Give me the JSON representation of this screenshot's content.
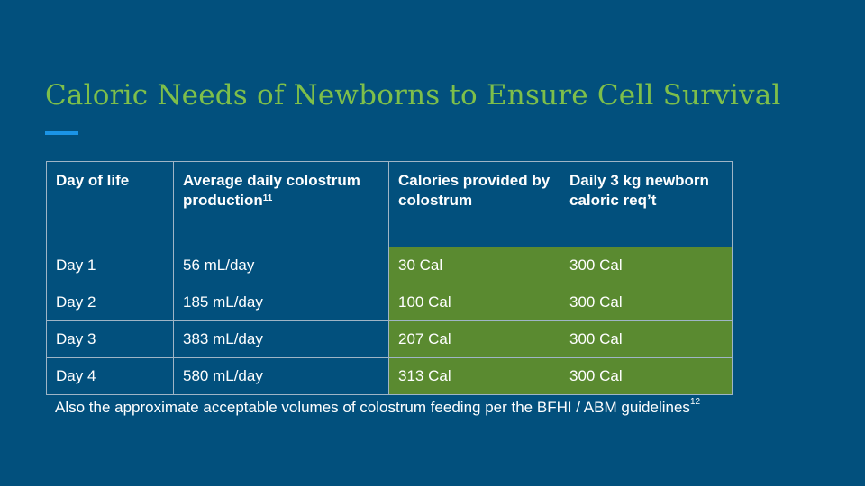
{
  "slide": {
    "title": "Caloric Needs of Newborns to Ensure Cell Survival",
    "accent_color": "#1b94e6",
    "title_color": "#7ebf4a",
    "background_color": "#02507d",
    "highlight_color": "#5a8a30"
  },
  "table": {
    "headers": [
      {
        "text": "Day of life",
        "sup": ""
      },
      {
        "text": "Average daily colostrum production",
        "sup": "11"
      },
      {
        "text": "Calories provided by colostrum",
        "sup": ""
      },
      {
        "text": "Daily 3 kg newborn caloric req’t",
        "sup": ""
      }
    ],
    "rows": [
      [
        "Day 1",
        "56 mL/day",
        "30 Cal",
        "300 Cal"
      ],
      [
        "Day 2",
        "185 mL/day",
        "100 Cal",
        "300 Cal"
      ],
      [
        "Day 3",
        "383 mL/day",
        "207 Cal",
        "300 Cal"
      ],
      [
        "Day 4",
        "580 mL/day",
        "313 Cal",
        "300 Cal"
      ]
    ]
  },
  "footnote": {
    "text": "Also the approximate acceptable volumes of colostrum feeding per the BFHI / ABM guidelines",
    "sup": "12"
  }
}
